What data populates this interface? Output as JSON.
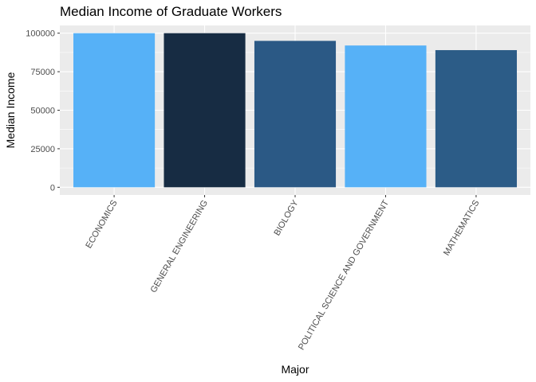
{
  "chart_data": {
    "type": "bar",
    "title": "Median Income of Graduate Workers",
    "xlabel": "Major",
    "ylabel": "Median Income",
    "categories": [
      "ECONOMICS",
      "GENERAL ENGINEERING",
      "BIOLOGY",
      "POLITICAL SCIENCE AND GOVERNMENT",
      "MATHEMATICS"
    ],
    "values": [
      100000,
      100000,
      95000,
      92000,
      89000
    ],
    "bar_colors": [
      "#56b1f7",
      "#172c43",
      "#2b5985",
      "#56b1f7",
      "#2c5c87"
    ],
    "yticks": [
      0,
      25000,
      50000,
      75000,
      100000
    ],
    "ylim": [
      -5000,
      105000
    ],
    "grid": true,
    "panel_background": "#ebebeb",
    "grid_color": "#ffffff",
    "legend": "none"
  }
}
